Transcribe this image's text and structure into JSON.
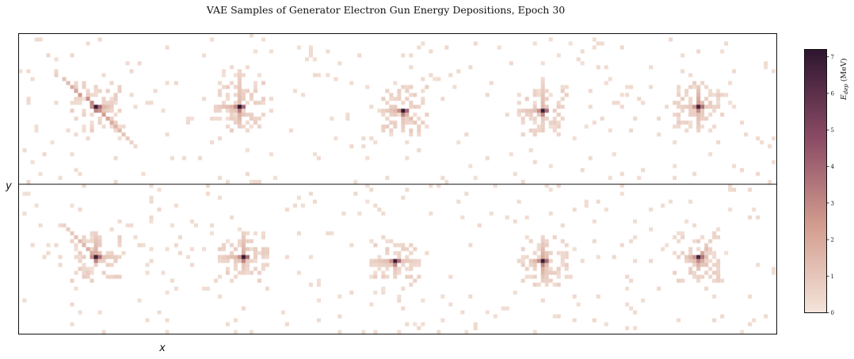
{
  "chart_data": {
    "type": "heatmap",
    "title": "VAE Samples of Generator Electron Gun Energy Depositions, Epoch 30",
    "xlabel": "x",
    "ylabel": "y",
    "colorbar": {
      "label_main": "E",
      "label_sub": "dep",
      "label_unit": " (MeV)",
      "ticks": [
        "0",
        "1",
        "2",
        "3",
        "4",
        "5",
        "6",
        "7"
      ],
      "range": [
        0,
        7.2
      ],
      "colors": [
        "#f4e4da",
        "#d29c8e",
        "#8a4a64",
        "#2e1530"
      ]
    },
    "grid": {
      "rows": 2,
      "cols": 5
    },
    "samples": [
      {
        "center": [
          38,
          36
        ],
        "peak": 6.9,
        "arms": [
          [
            [
              -1.2,
              -1.0
            ],
            8,
            3.0
          ],
          [
            [
              1,
              1
            ],
            9,
            2.5
          ],
          [
            [
              1,
              0
            ],
            4,
            2.0
          ]
        ]
      },
      {
        "center": [
          34,
          36
        ],
        "peak": 7.2,
        "arms": [
          [
            [
              -1,
              0
            ],
            6,
            1.6
          ],
          [
            [
              0,
              -1
            ],
            9,
            1.0
          ],
          [
            [
              0,
              1
            ],
            5,
            2.0
          ]
        ]
      },
      {
        "center": [
          40,
          38
        ],
        "peak": 7.0,
        "arms": [
          [
            [
              -1,
              0
            ],
            5,
            1.5
          ],
          [
            [
              1,
              1
            ],
            4,
            1.4
          ],
          [
            [
              0,
              1
            ],
            5,
            1.0
          ]
        ]
      },
      {
        "center": [
          34,
          38
        ],
        "peak": 6.8,
        "arms": [
          [
            [
              -1,
              0
            ],
            6,
            1.3
          ],
          [
            [
              0,
              -1
            ],
            7,
            1.2
          ],
          [
            [
              0,
              1
            ],
            3,
            1.0
          ]
        ]
      },
      {
        "center": [
          36,
          36
        ],
        "peak": 6.6,
        "arms": [
          [
            [
              0,
              -1
            ],
            5,
            2.2
          ],
          [
            [
              0,
              1
            ],
            6,
            1.2
          ],
          [
            [
              -1,
              0
            ],
            5,
            0.9
          ],
          [
            [
              1,
              0
            ],
            4,
            0.9
          ]
        ]
      },
      {
        "center": [
          38,
          36
        ],
        "peak": 6.8,
        "arms": [
          [
            [
              -1,
              -1
            ],
            8,
            1.7
          ],
          [
            [
              1,
              0
            ],
            6,
            1.0
          ],
          [
            [
              0,
              -1
            ],
            6,
            1.6
          ]
        ]
      },
      {
        "center": [
          36,
          36
        ],
        "peak": 6.9,
        "arms": [
          [
            [
              -1,
              0
            ],
            6,
            1.3
          ],
          [
            [
              0,
              -1
            ],
            6,
            1.6
          ],
          [
            [
              0,
              1
            ],
            4,
            1.0
          ]
        ]
      },
      {
        "center": [
          36,
          38
        ],
        "peak": 6.7,
        "arms": [
          [
            [
              -1,
              0
            ],
            6,
            1.2
          ],
          [
            [
              1,
              0
            ],
            6,
            0.9
          ],
          [
            [
              0,
              1
            ],
            4,
            0.9
          ]
        ]
      },
      {
        "center": [
          34,
          38
        ],
        "peak": 6.9,
        "arms": [
          [
            [
              -1,
              0
            ],
            3,
            2.1
          ],
          [
            [
              0,
              -1
            ],
            5,
            1.8
          ],
          [
            [
              0,
              1
            ],
            5,
            2.0
          ]
        ]
      },
      {
        "center": [
          36,
          36
        ],
        "peak": 6.5,
        "arms": [
          [
            [
              -1,
              0
            ],
            3,
            2.2
          ],
          [
            [
              1,
              -1
            ],
            2,
            2.5
          ],
          [
            [
              0,
              1
            ],
            3,
            2.5
          ],
          [
            [
              1,
              1
            ],
            2,
            2.0
          ]
        ]
      }
    ]
  }
}
